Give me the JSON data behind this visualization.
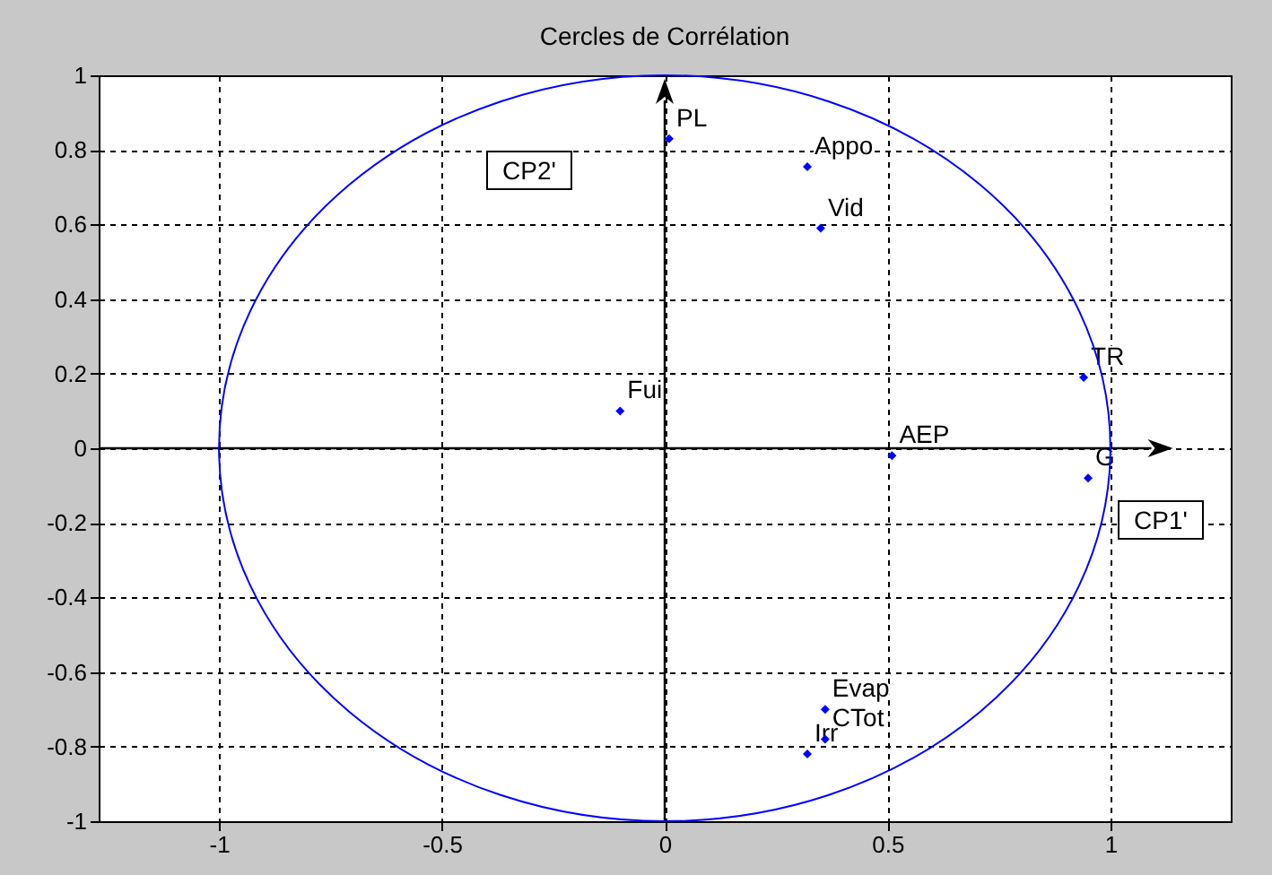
{
  "chart_data": {
    "type": "scatter",
    "title": "Cercles de Corrélation",
    "xlim": [
      -1.27,
      1.27
    ],
    "ylim": [
      -1,
      1
    ],
    "xticks": [
      -1,
      -0.5,
      0,
      0.5,
      1
    ],
    "yticks": [
      -1,
      -0.8,
      -0.6,
      -0.4,
      -0.2,
      0,
      0.2,
      0.4,
      0.6,
      0.8,
      1
    ],
    "grid": true,
    "marker": "diamond",
    "series": [
      {
        "color": "#0000ff",
        "x": [
          0.01,
          0.32,
          0.35,
          -0.1,
          0.51,
          0.94,
          0.95,
          0.36,
          0.36,
          0.32
        ],
        "values": [
          0.83,
          0.755,
          0.59,
          0.1,
          -0.02,
          0.19,
          -0.08,
          -0.7,
          -0.78,
          -0.82
        ]
      }
    ],
    "annotations": [
      {
        "text": "PL",
        "x": 0.01,
        "y": 0.83
      },
      {
        "text": "Appo",
        "x": 0.32,
        "y": 0.755
      },
      {
        "text": "Vid",
        "x": 0.35,
        "y": 0.59
      },
      {
        "text": "Fui",
        "x": -0.1,
        "y": 0.1
      },
      {
        "text": "AEP",
        "x": 0.51,
        "y": -0.02
      },
      {
        "text": "TR",
        "x": 0.94,
        "y": 0.19
      },
      {
        "text": "G",
        "x": 0.95,
        "y": -0.08
      },
      {
        "text": "Evap",
        "x": 0.36,
        "y": -0.7
      },
      {
        "text": "CTot",
        "x": 0.36,
        "y": -0.78
      },
      {
        "text": "Irr",
        "x": 0.32,
        "y": -0.82
      },
      "CP2'",
      "CP1'"
    ]
  }
}
